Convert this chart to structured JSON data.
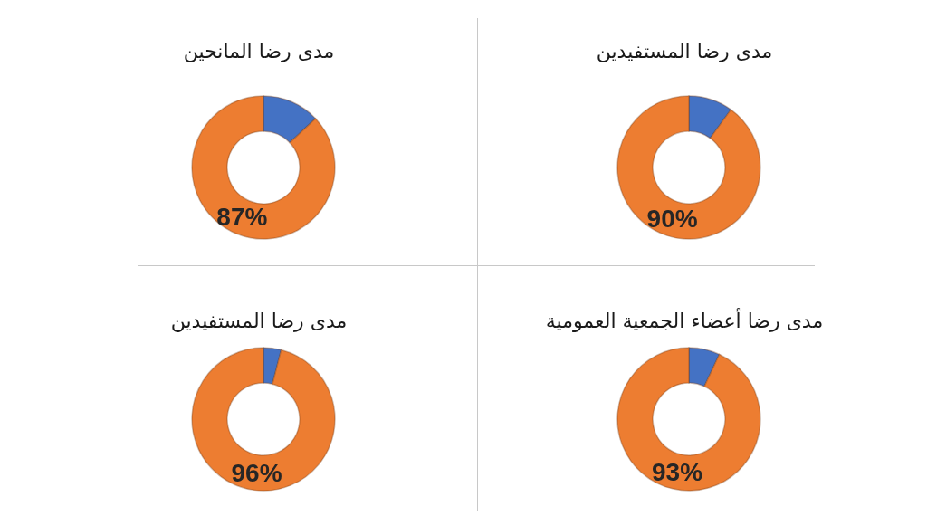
{
  "chart_data": [
    {
      "type": "donut",
      "title": "مدى رضا المستفيدين",
      "categories": [
        null,
        null
      ],
      "values": [
        10,
        90
      ],
      "colors": [
        "#4472c4",
        "#ed7d31"
      ],
      "value_labels": [
        null,
        "90%"
      ]
    },
    {
      "type": "donut",
      "title": "مدى رضا المانحين",
      "categories": [
        null,
        null
      ],
      "values": [
        13,
        87
      ],
      "colors": [
        "#4472c4",
        "#ed7d31"
      ],
      "value_labels": [
        null,
        "87%"
      ]
    },
    {
      "type": "donut",
      "title": "مدى رضا أعضاء الجمعية العمومية",
      "categories": [
        null,
        null
      ],
      "values": [
        7,
        93
      ],
      "colors": [
        "#4472c4",
        "#ed7d31"
      ],
      "value_labels": [
        null,
        "93%"
      ]
    },
    {
      "type": "donut",
      "title": "مدى رضا المستفيدين",
      "categories": [
        null,
        null
      ],
      "values": [
        4,
        96
      ],
      "colors": [
        "#4472c4",
        "#ed7d31"
      ],
      "value_labels": [
        null,
        "96%"
      ]
    }
  ]
}
